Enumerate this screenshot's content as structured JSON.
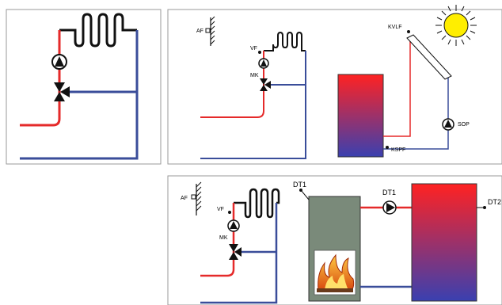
{
  "panel_top_right": {
    "labels": {
      "af": "AF",
      "vf": "VF",
      "mk": "MK",
      "kvlf": "KVLF",
      "sop": "SOP",
      "kspf": "KSPF"
    }
  },
  "panel_bottom": {
    "labels": {
      "af": "AF",
      "vf": "VF",
      "mk": "MK",
      "dt1_top": "DT1",
      "dt1_pump": "DT1",
      "dt2": "DT2"
    }
  },
  "colors": {
    "hot": "#e52a2a",
    "cold": "#3a4d9a",
    "border": "#9a9a9a",
    "boiler": "#7a8a7a",
    "sun": "#ffee00"
  }
}
